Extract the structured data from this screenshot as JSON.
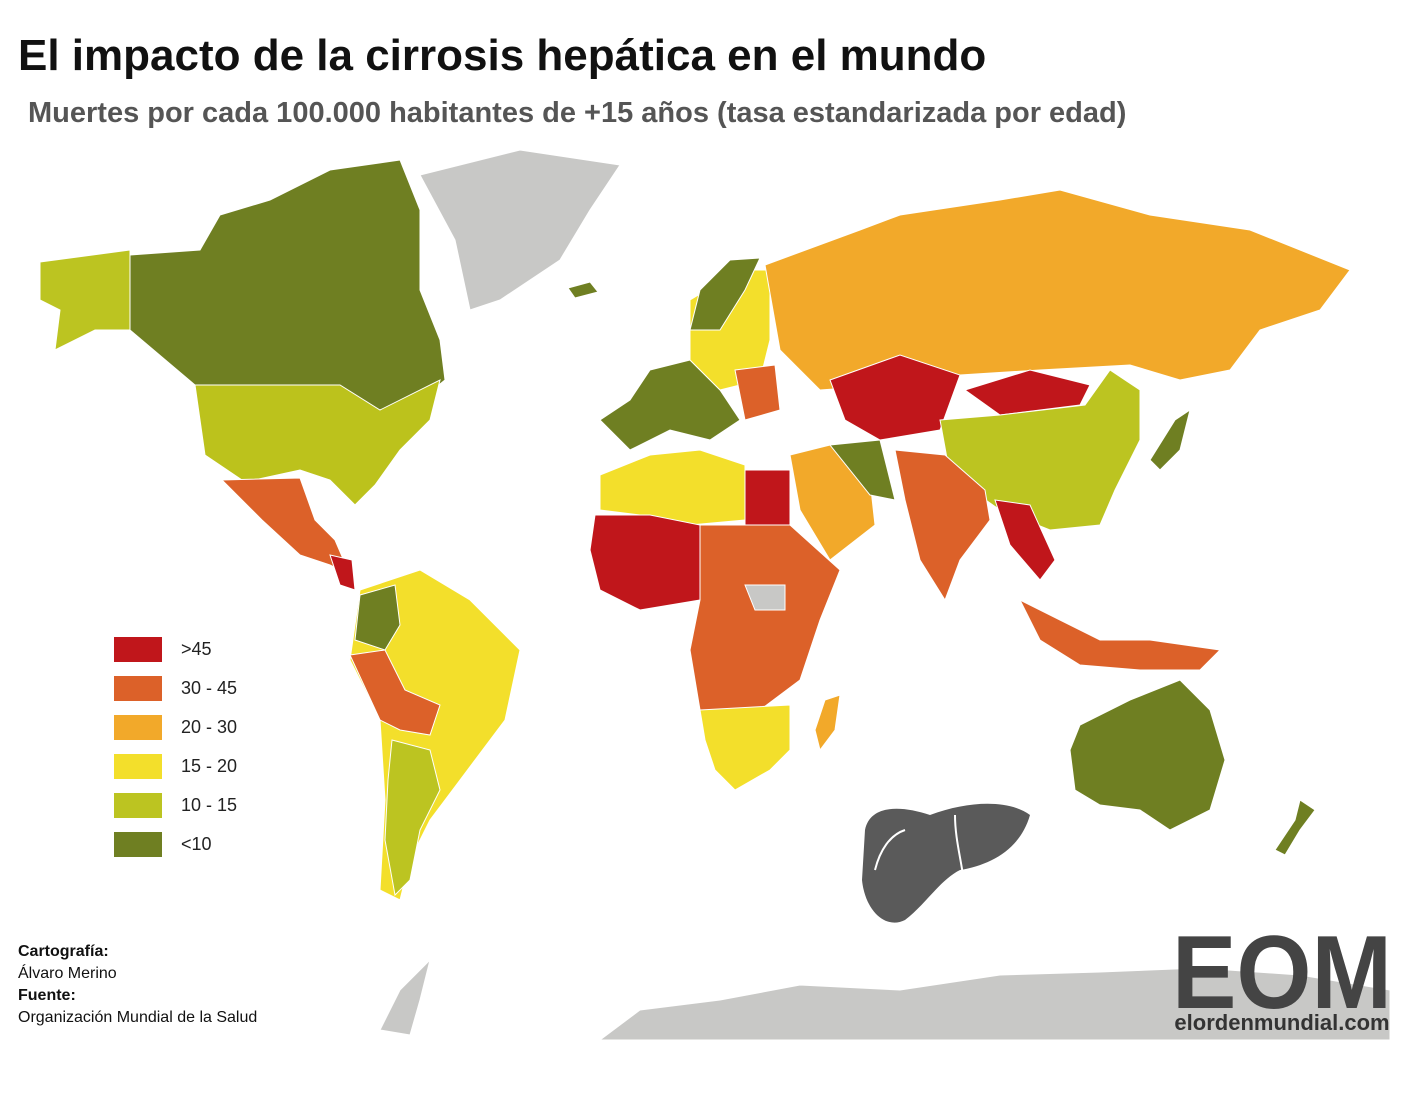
{
  "header": {
    "title": "El impacto de la cirrosis hepática en el mundo",
    "subtitle": "Muertes por cada 100.000 habitantes de +15 años (tasa estandarizada por edad)"
  },
  "legend": [
    {
      "label": ">45",
      "color": "#c0161b"
    },
    {
      "label": "30 - 45",
      "color": "#dc6129"
    },
    {
      "label": "20 - 30",
      "color": "#f2a92a"
    },
    {
      "label": "15 - 20",
      "color": "#f3df2b"
    },
    {
      "label": "10 - 15",
      "color": "#bcc421"
    },
    {
      "label": "<10",
      "color": "#6f7f22"
    }
  ],
  "credits": [
    {
      "heading": "Cartografía:",
      "text": "Álvaro Merino"
    },
    {
      "heading": "Fuente:",
      "text": "Organización Mundial de la Salud"
    }
  ],
  "logo": {
    "mark": "EOM",
    "url": "elordenmundial.com"
  }
}
